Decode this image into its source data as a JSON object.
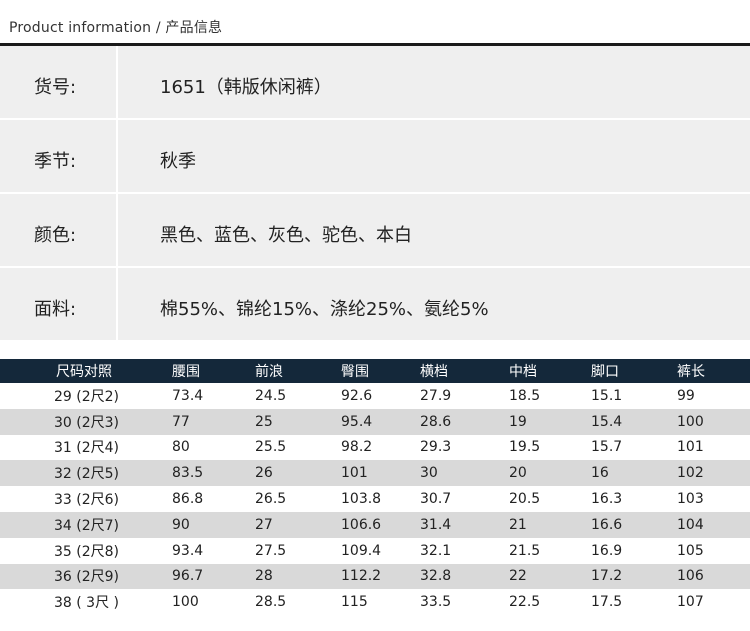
{
  "header": {
    "title": "Product information /   产品信息"
  },
  "info": [
    {
      "label": "货号:",
      "value": "1651（韩版休闲裤）"
    },
    {
      "label": "季节:",
      "value": "秋季"
    },
    {
      "label": "颜色:",
      "value": "黑色、蓝色、灰色、驼色、本白"
    },
    {
      "label": "面料:",
      "value": "棉55%、锦纶15%、涤纶25%、氨纶5%"
    }
  ],
  "size_table": {
    "headers": [
      "尺码对照",
      "腰围",
      "前浪",
      "臀围",
      "横档",
      "中档",
      "脚口",
      "裤长"
    ],
    "rows": [
      [
        "29 (2尺2)",
        "73.4",
        "24.5",
        "92.6",
        "27.9",
        "18.5",
        "15.1",
        "99"
      ],
      [
        "30 (2尺3)",
        "77",
        "25",
        "95.4",
        "28.6",
        "19",
        "15.4",
        "100"
      ],
      [
        "31 (2尺4)",
        "80",
        "25.5",
        "98.2",
        "29.3",
        "19.5",
        "15.7",
        "101"
      ],
      [
        "32 (2尺5)",
        "83.5",
        "26",
        "101",
        "30",
        "20",
        "16",
        "102"
      ],
      [
        "33 (2尺6)",
        "86.8",
        "26.5",
        "103.8",
        "30.7",
        "20.5",
        "16.3",
        "103"
      ],
      [
        "34 (2尺7)",
        "90",
        "27",
        "106.6",
        "31.4",
        "21",
        "16.6",
        "104"
      ],
      [
        "35 (2尺8)",
        "93.4",
        "27.5",
        "109.4",
        "32.1",
        "21.5",
        "16.9",
        "105"
      ],
      [
        "36 (2尺9)",
        "96.7",
        "28",
        "112.2",
        "32.8",
        "22",
        "17.2",
        "106"
      ],
      [
        "38 ( 3尺 )",
        "100",
        "28.5",
        "115",
        "33.5",
        "22.5",
        "17.5",
        "107"
      ]
    ]
  }
}
